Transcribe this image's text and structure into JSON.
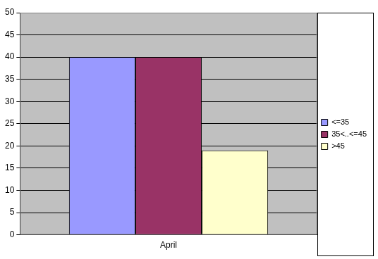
{
  "chart_data": {
    "type": "bar",
    "categories": [
      "April"
    ],
    "series": [
      {
        "name": "<=35",
        "color": "#9999ff",
        "values": [
          40
        ]
      },
      {
        "name": "35<..<=45",
        "color": "#993366",
        "values": [
          40
        ]
      },
      {
        "name": ">45",
        "color": "#ffffcc",
        "values": [
          19
        ]
      }
    ],
    "ylim": [
      0,
      50
    ],
    "yticks": [
      0,
      5,
      10,
      15,
      20,
      25,
      30,
      35,
      40,
      45,
      50
    ],
    "grid": true,
    "legend": "right"
  }
}
